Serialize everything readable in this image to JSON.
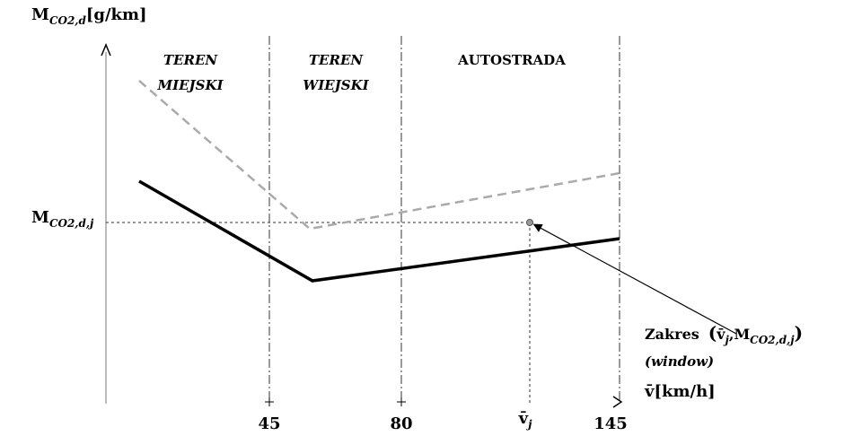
{
  "axes": {
    "y_label": {
      "symbol": "M",
      "subscript": "CO2,d",
      "unit": "[g/km]"
    },
    "y_level": {
      "symbol": "M",
      "subscript": "CO2,d,j"
    },
    "x_label": {
      "symbol": "v̄",
      "unit": "[km/h]"
    },
    "x_ticks": [
      "45",
      "80",
      "145"
    ],
    "x_point": {
      "symbol": "v̄",
      "subscript": "j"
    }
  },
  "regions": [
    {
      "lines": [
        "TEREN",
        "MIEJSKI"
      ]
    },
    {
      "lines": [
        "TEREN",
        "WIEJSKI"
      ]
    },
    {
      "lines": [
        "AUTOSTRADA"
      ]
    }
  ],
  "annotation": {
    "label": "Zakres",
    "point": {
      "open": "(",
      "v": "v̄",
      "v_sub": "j",
      "sep": ",",
      "m": "M",
      "m_sub": "CO2,d,j",
      "close": ")"
    },
    "note": "(window)"
  }
}
